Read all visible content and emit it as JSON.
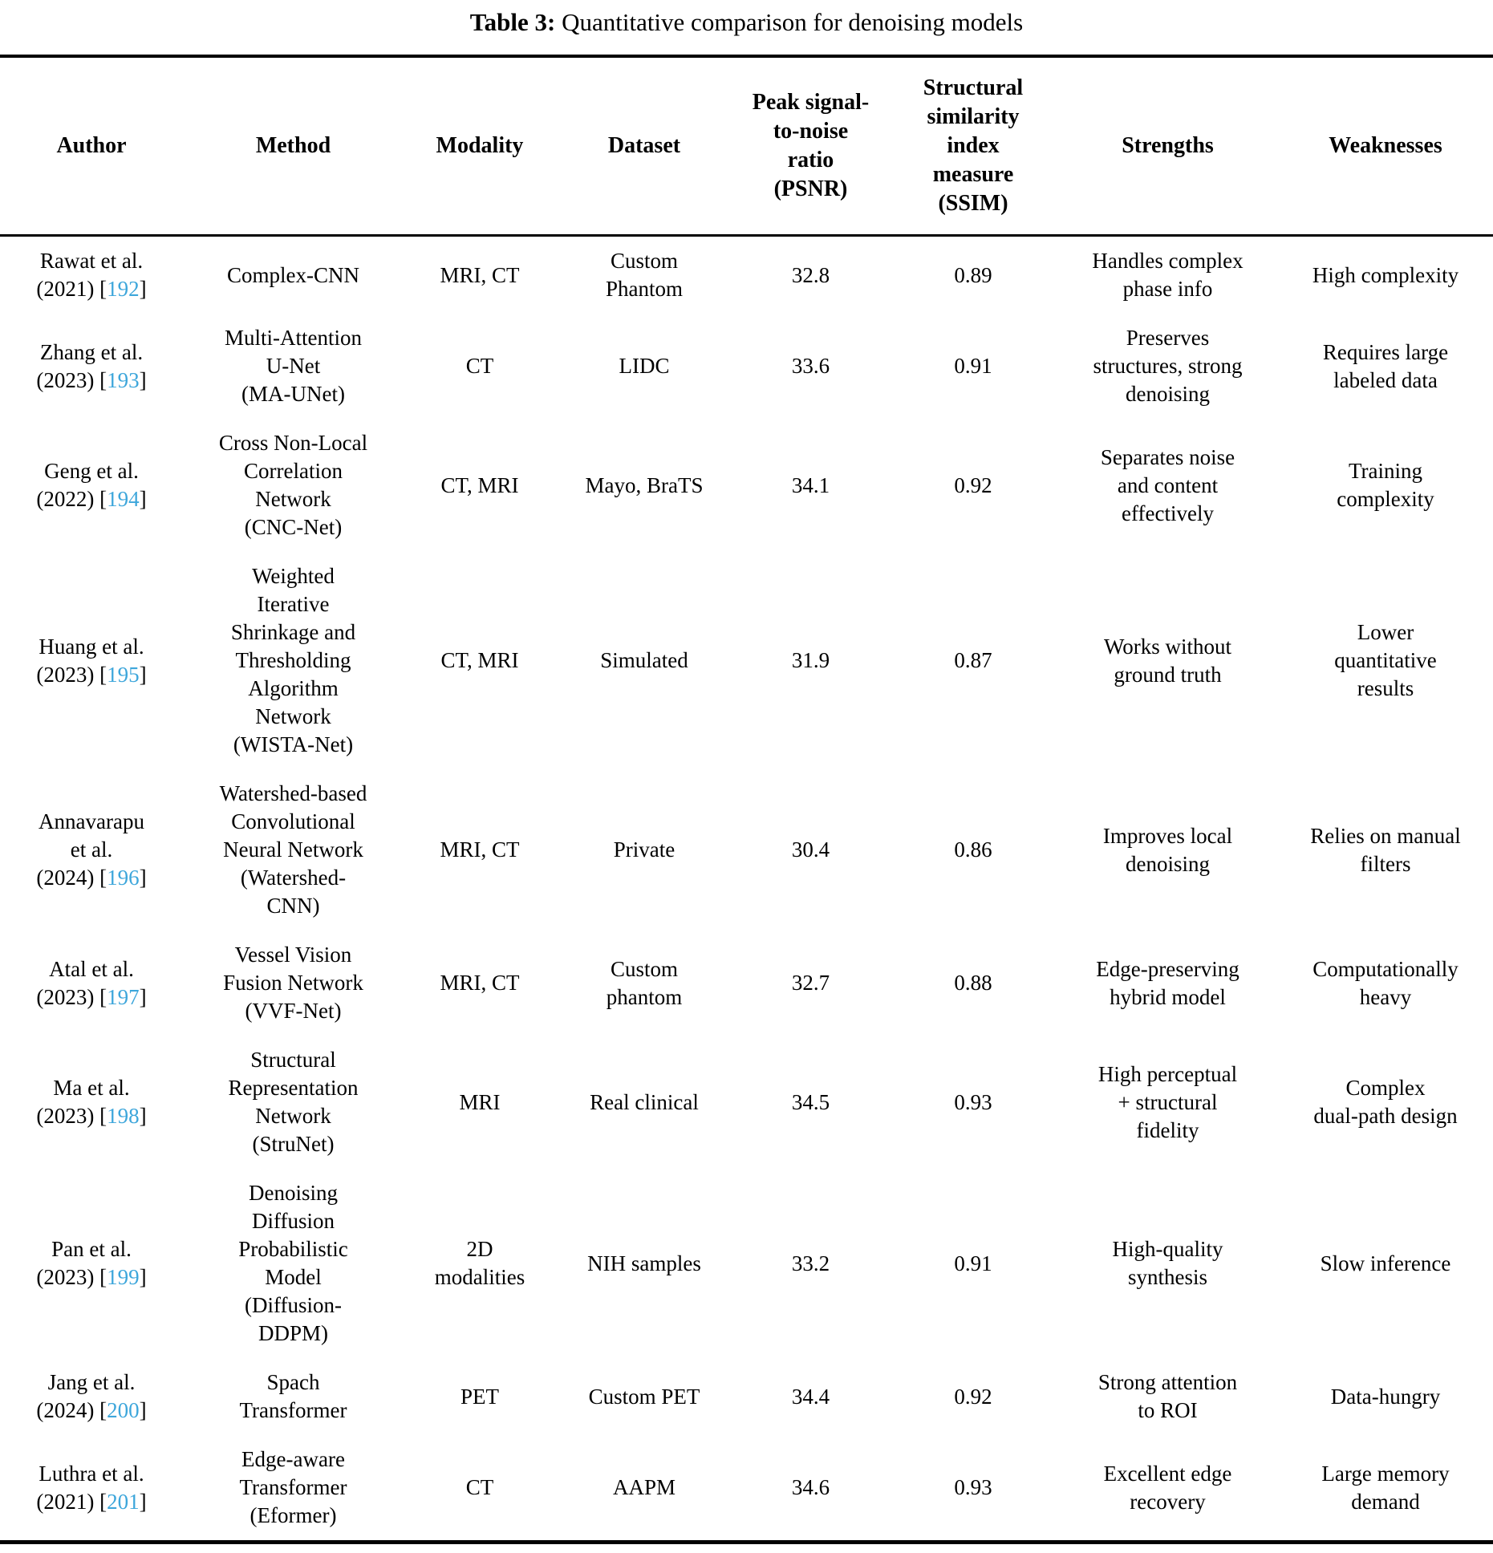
{
  "caption": {
    "label": "Table 3:",
    "text": "Quantitative comparison for denoising models"
  },
  "accent_color": "#3da6db",
  "columns": [
    {
      "id": "author",
      "label": "Author"
    },
    {
      "id": "method",
      "label": "Method"
    },
    {
      "id": "modality",
      "label": "Modality"
    },
    {
      "id": "dataset",
      "label": "Dataset"
    },
    {
      "id": "psnr",
      "label": "Peak signal-\nto-noise\nratio\n(PSNR)"
    },
    {
      "id": "ssim",
      "label": "Structural\nsimilarity\nindex\nmeasure\n(SSIM)"
    },
    {
      "id": "strengths",
      "label": "Strengths"
    },
    {
      "id": "weaknesses",
      "label": "Weaknesses"
    }
  ],
  "rows": [
    {
      "author": "Rawat et al.\n(2021)",
      "ref": "192",
      "method": "Complex-CNN",
      "modality": "MRI, CT",
      "dataset": "Custom\nPhantom",
      "psnr": "32.8",
      "ssim": "0.89",
      "strengths": "Handles complex\nphase info",
      "weaknesses": "High complexity"
    },
    {
      "author": "Zhang et al.\n(2023)",
      "ref": "193",
      "method": "Multi-Attention\nU-Net\n(MA-UNet)",
      "modality": "CT",
      "dataset": "LIDC",
      "psnr": "33.6",
      "ssim": "0.91",
      "strengths": "Preserves\nstructures, strong\ndenoising",
      "weaknesses": "Requires large\nlabeled data"
    },
    {
      "author": "Geng et al.\n(2022)",
      "ref": "194",
      "method": "Cross Non-Local\nCorrelation\nNetwork\n(CNC-Net)",
      "modality": "CT, MRI",
      "dataset": "Mayo, BraTS",
      "psnr": "34.1",
      "ssim": "0.92",
      "strengths": "Separates noise\nand content\neffectively",
      "weaknesses": "Training\ncomplexity"
    },
    {
      "author": "Huang et al.\n(2023)",
      "ref": "195",
      "method": "Weighted\nIterative\nShrinkage and\nThresholding\nAlgorithm\nNetwork\n(WISTA-Net)",
      "modality": "CT, MRI",
      "dataset": "Simulated",
      "psnr": "31.9",
      "ssim": "0.87",
      "strengths": "Works without\nground truth",
      "weaknesses": "Lower\nquantitative\nresults"
    },
    {
      "author": "Annavarapu\net al.\n(2024)",
      "ref": "196",
      "method": "Watershed-based\nConvolutional\nNeural Network\n(Watershed-\nCNN)",
      "modality": "MRI, CT",
      "dataset": "Private",
      "psnr": "30.4",
      "ssim": "0.86",
      "strengths": "Improves local\ndenoising",
      "weaknesses": "Relies on manual\nfilters"
    },
    {
      "author": "Atal et al.\n(2023)",
      "ref": "197",
      "method": "Vessel Vision\nFusion Network\n(VVF-Net)",
      "modality": "MRI, CT",
      "dataset": "Custom\nphantom",
      "psnr": "32.7",
      "ssim": "0.88",
      "strengths": "Edge-preserving\nhybrid model",
      "weaknesses": "Computationally\nheavy"
    },
    {
      "author": "Ma et al.\n(2023)",
      "ref": "198",
      "method": "Structural\nRepresentation\nNetwork\n(StruNet)",
      "modality": "MRI",
      "dataset": "Real clinical",
      "psnr": "34.5",
      "ssim": "0.93",
      "strengths": "High perceptual\n+ structural\nfidelity",
      "weaknesses": "Complex\ndual-path design"
    },
    {
      "author": "Pan et al.\n(2023)",
      "ref": "199",
      "method": "Denoising\nDiffusion\nProbabilistic\nModel\n(Diffusion-\nDDPM)",
      "modality": "2D\nmodalities",
      "dataset": "NIH samples",
      "psnr": "33.2",
      "ssim": "0.91",
      "strengths": "High-quality\nsynthesis",
      "weaknesses": "Slow inference"
    },
    {
      "author": "Jang et al.\n(2024)",
      "ref": "200",
      "method": "Spach\nTransformer",
      "modality": "PET",
      "dataset": "Custom PET",
      "psnr": "34.4",
      "ssim": "0.92",
      "strengths": "Strong attention\nto ROI",
      "weaknesses": "Data-hungry"
    },
    {
      "author": "Luthra et al.\n(2021)",
      "ref": "201",
      "method": "Edge-aware\nTransformer\n(Eformer)",
      "modality": "CT",
      "dataset": "AAPM",
      "psnr": "34.6",
      "ssim": "0.93",
      "strengths": "Excellent edge\nrecovery",
      "weaknesses": "Large memory\ndemand"
    }
  ]
}
